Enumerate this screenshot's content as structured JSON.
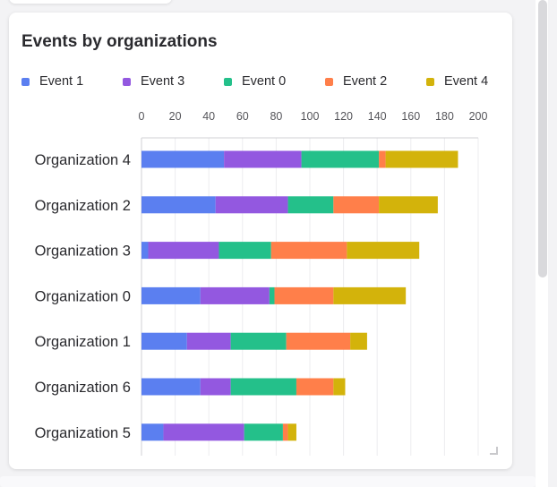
{
  "card": {
    "title": "Events by organizations"
  },
  "chart_data": {
    "type": "bar",
    "orientation": "horizontal",
    "stacked": true,
    "title": "Events by organizations",
    "xlabel": "",
    "ylabel": "",
    "xlim": [
      0,
      200
    ],
    "x_ticks": [
      0,
      20,
      40,
      60,
      80,
      100,
      120,
      140,
      160,
      180,
      200
    ],
    "grid": true,
    "legend_position": "top",
    "categories": [
      "Organization 4",
      "Organization 2",
      "Organization 3",
      "Organization 0",
      "Organization 1",
      "Organization 6",
      "Organization 5"
    ],
    "series": [
      {
        "name": "Event 1",
        "color": "#5b7ff0",
        "values": [
          49,
          44,
          4,
          35,
          27,
          35,
          13
        ]
      },
      {
        "name": "Event 3",
        "color": "#9358e0",
        "values": [
          46,
          43,
          42,
          41,
          26,
          18,
          48
        ]
      },
      {
        "name": "Event 0",
        "color": "#24c08a",
        "values": [
          46,
          27,
          31,
          3,
          33,
          39,
          23
        ]
      },
      {
        "name": "Event 2",
        "color": "#ff7f4a",
        "values": [
          4,
          27,
          45,
          35,
          38,
          22,
          3
        ]
      },
      {
        "name": "Event 4",
        "color": "#d3b30b",
        "values": [
          43,
          35,
          43,
          43,
          10,
          7,
          5
        ]
      }
    ]
  }
}
